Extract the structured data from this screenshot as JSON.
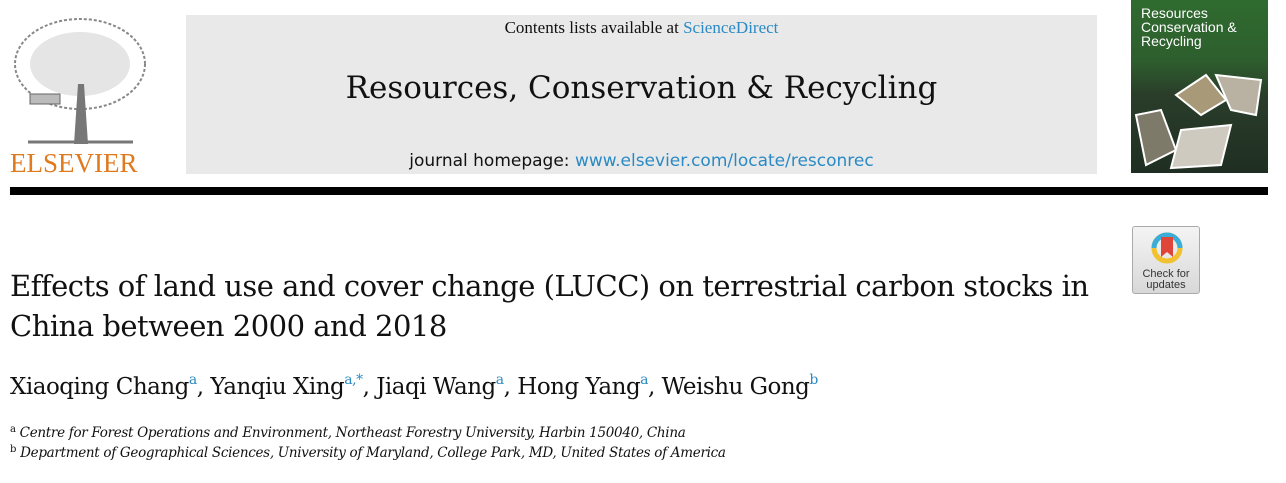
{
  "publisher": {
    "logo_text": "ELSEVIER"
  },
  "banner": {
    "contents_prefix": "Contents lists available at ",
    "contents_link": "ScienceDirect",
    "journal_title": "Resources, Conservation & Recycling",
    "homepage_prefix": "journal homepage: ",
    "homepage_link": "www.elsevier.com/locate/resconrec"
  },
  "cover": {
    "title": "Resources Conservation & Recycling"
  },
  "check_updates": {
    "label": "Check for updates"
  },
  "colors": {
    "link": "#2a8ac4",
    "publisher_orange": "#e07a1f",
    "banner_bg": "#e9e9e9"
  },
  "article": {
    "title": "Effects of land use and cover change (LUCC) on terrestrial carbon stocks in China between 2000 and 2018",
    "authors": [
      {
        "name": "Xiaoqing Chang",
        "aff": "a"
      },
      {
        "name": "Yanqiu Xing",
        "aff": "a,*"
      },
      {
        "name": "Jiaqi Wang",
        "aff": "a"
      },
      {
        "name": "Hong Yang",
        "aff": "a"
      },
      {
        "name": "Weishu Gong",
        "aff": "b"
      }
    ],
    "affiliations": [
      {
        "label": "a",
        "text": "Centre for Forest Operations and Environment, Northeast Forestry University, Harbin 150040, China"
      },
      {
        "label": "b",
        "text": "Department of Geographical Sciences, University of Maryland, College Park, MD, United States of America"
      }
    ]
  }
}
